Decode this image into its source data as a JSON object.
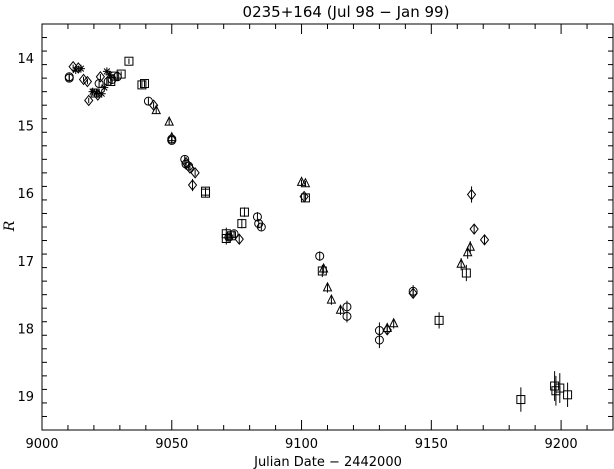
{
  "chart_data": {
    "type": "scatter",
    "title": "0235+164 (Jul 98 − Jan 99)",
    "xlabel": "Julian Date − 2442000",
    "ylabel": "R",
    "xlim": [
      9000,
      9220
    ],
    "ylim": [
      19.5,
      13.5
    ],
    "y_inverted": true,
    "x_ticks": [
      9000,
      9050,
      9100,
      9150,
      9200
    ],
    "y_ticks": [
      14,
      15,
      16,
      17,
      18,
      19
    ],
    "grid": false,
    "legend": "none",
    "series": [
      {
        "marker": "circle",
        "points": [
          {
            "x": 9010.5,
            "y": 14.28,
            "err": 0.05
          },
          {
            "x": 9010.5,
            "y": 14.3,
            "err": 0.05
          },
          {
            "x": 9022,
            "y": 14.38,
            "err": 0.05
          },
          {
            "x": 9025.5,
            "y": 14.35,
            "err": 0.05
          },
          {
            "x": 9027,
            "y": 14.32,
            "err": 0.05
          },
          {
            "x": 9029,
            "y": 14.28,
            "err": 0.05
          },
          {
            "x": 9041,
            "y": 14.64,
            "err": 0.05
          },
          {
            "x": 9050,
            "y": 15.2,
            "err": 0.05
          },
          {
            "x": 9050,
            "y": 15.22,
            "err": 0.05
          },
          {
            "x": 9055,
            "y": 15.5,
            "err": 0.05
          },
          {
            "x": 9055.5,
            "y": 15.57,
            "err": 0.05
          },
          {
            "x": 9056.5,
            "y": 15.6,
            "err": 0.05
          },
          {
            "x": 9072,
            "y": 16.65,
            "err": 0.05
          },
          {
            "x": 9074,
            "y": 16.6,
            "err": 0.05
          },
          {
            "x": 9083,
            "y": 16.35,
            "err": 0.07
          },
          {
            "x": 9083.5,
            "y": 16.45,
            "err": 0.07
          },
          {
            "x": 9084.5,
            "y": 16.5,
            "err": 0.05
          },
          {
            "x": 9107,
            "y": 16.93,
            "err": 0.07
          },
          {
            "x": 9117.5,
            "y": 17.68,
            "err": 0.09
          },
          {
            "x": 9117.5,
            "y": 17.82,
            "err": 0.09
          },
          {
            "x": 9130,
            "y": 18.03,
            "err": 0.12
          },
          {
            "x": 9130,
            "y": 18.17,
            "err": 0.12
          },
          {
            "x": 9143,
            "y": 17.45,
            "err": 0.09
          }
        ]
      },
      {
        "marker": "diamond",
        "points": [
          {
            "x": 9012,
            "y": 14.13,
            "err": 0.03
          },
          {
            "x": 9014,
            "y": 14.15,
            "err": 0.03
          },
          {
            "x": 9016,
            "y": 14.32,
            "err": 0.04
          },
          {
            "x": 9017.5,
            "y": 14.35,
            "err": 0.04
          },
          {
            "x": 9018,
            "y": 14.63,
            "err": 0.04
          },
          {
            "x": 9021.5,
            "y": 14.55,
            "err": 0.04
          },
          {
            "x": 9022.5,
            "y": 14.28,
            "err": 0.04
          },
          {
            "x": 9043,
            "y": 14.7,
            "err": 0.05
          },
          {
            "x": 9055.5,
            "y": 15.55,
            "err": 0.05
          },
          {
            "x": 9057,
            "y": 15.63,
            "err": 0.05
          },
          {
            "x": 9058,
            "y": 15.88,
            "err": 0.09
          },
          {
            "x": 9059,
            "y": 15.7,
            "err": 0.05
          },
          {
            "x": 9076,
            "y": 16.68,
            "err": 0.07
          },
          {
            "x": 9101,
            "y": 16.05,
            "err": 0.05
          },
          {
            "x": 9133,
            "y": 18.02,
            "err": 0.07
          },
          {
            "x": 9143,
            "y": 17.48,
            "err": 0.07
          },
          {
            "x": 9165.5,
            "y": 16.02,
            "err": 0.12
          },
          {
            "x": 9166.5,
            "y": 16.53,
            "err": 0.07
          },
          {
            "x": 9170.5,
            "y": 16.69,
            "err": 0.07
          }
        ]
      },
      {
        "marker": "triangle",
        "points": [
          {
            "x": 9044,
            "y": 14.78,
            "err": 0.05
          },
          {
            "x": 9049,
            "y": 14.95,
            "err": 0.05
          },
          {
            "x": 9050,
            "y": 15.18,
            "err": 0.05
          },
          {
            "x": 9100,
            "y": 15.84,
            "err": 0.04
          },
          {
            "x": 9101.5,
            "y": 15.86,
            "err": 0.04
          },
          {
            "x": 9108.5,
            "y": 17.12,
            "err": 0.07
          },
          {
            "x": 9110,
            "y": 17.4,
            "err": 0.07
          },
          {
            "x": 9111.5,
            "y": 17.58,
            "err": 0.07
          },
          {
            "x": 9115,
            "y": 17.73,
            "err": 0.07
          },
          {
            "x": 9133,
            "y": 18.0,
            "err": 0.07
          },
          {
            "x": 9135.5,
            "y": 17.93,
            "err": 0.07
          },
          {
            "x": 9161.5,
            "y": 17.05,
            "err": 0.09
          },
          {
            "x": 9164,
            "y": 16.88,
            "err": 0.09
          },
          {
            "x": 9165,
            "y": 16.8,
            "err": 0.09
          }
        ]
      },
      {
        "marker": "square",
        "points": [
          {
            "x": 9020.5,
            "y": 14.52,
            "err": 0.04
          },
          {
            "x": 9026.5,
            "y": 14.35,
            "err": 0.04
          },
          {
            "x": 9028,
            "y": 14.27,
            "err": 0.04
          },
          {
            "x": 9030.5,
            "y": 14.24,
            "err": 0.04
          },
          {
            "x": 9033.5,
            "y": 14.05,
            "err": 0.04
          },
          {
            "x": 9038.5,
            "y": 14.4,
            "err": 0.05
          },
          {
            "x": 9039.5,
            "y": 14.38,
            "err": 0.05
          },
          {
            "x": 9063,
            "y": 15.97,
            "err": 0.05
          },
          {
            "x": 9063,
            "y": 16.0,
            "err": 0.05
          },
          {
            "x": 9071,
            "y": 16.6,
            "err": 0.09
          },
          {
            "x": 9071,
            "y": 16.67,
            "err": 0.09
          },
          {
            "x": 9073,
            "y": 16.63,
            "err": 0.05
          },
          {
            "x": 9077,
            "y": 16.45,
            "err": 0.07
          },
          {
            "x": 9078,
            "y": 16.28,
            "err": 0.07
          },
          {
            "x": 9101.5,
            "y": 16.07,
            "err": 0.05
          },
          {
            "x": 9108,
            "y": 17.15,
            "err": 0.09
          },
          {
            "x": 9153,
            "y": 17.88,
            "err": 0.12
          },
          {
            "x": 9163.5,
            "y": 17.18,
            "err": 0.12
          },
          {
            "x": 9184.5,
            "y": 19.05,
            "err": 0.18
          },
          {
            "x": 9197.5,
            "y": 18.85,
            "err": 0.22
          },
          {
            "x": 9198,
            "y": 18.92,
            "err": 0.22
          },
          {
            "x": 9199.5,
            "y": 18.88,
            "err": 0.22
          },
          {
            "x": 9202.5,
            "y": 18.98,
            "err": 0.18
          }
        ]
      },
      {
        "marker": "asterisk",
        "points": [
          {
            "x": 9013,
            "y": 14.18,
            "err": 0.03
          },
          {
            "x": 9015,
            "y": 14.16,
            "err": 0.03
          },
          {
            "x": 9019.5,
            "y": 14.5,
            "err": 0.03
          },
          {
            "x": 9021,
            "y": 14.52,
            "err": 0.03
          },
          {
            "x": 9023,
            "y": 14.53,
            "err": 0.03
          },
          {
            "x": 9024,
            "y": 14.44,
            "err": 0.03
          },
          {
            "x": 9025,
            "y": 14.2,
            "err": 0.03
          },
          {
            "x": 9026,
            "y": 14.25,
            "err": 0.03
          }
        ]
      }
    ]
  }
}
